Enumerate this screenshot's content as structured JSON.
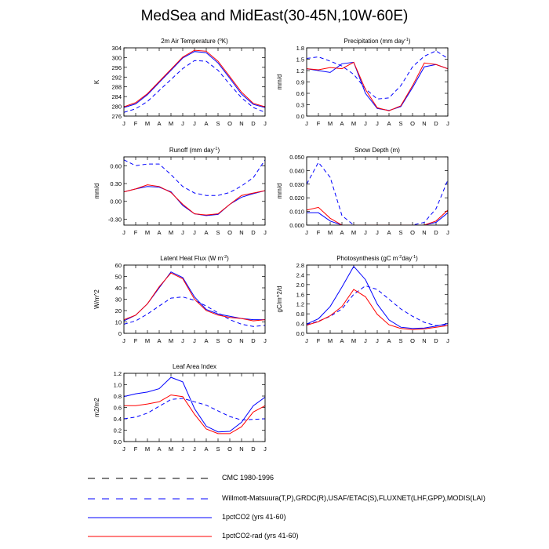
{
  "title": "MedSea and MidEast(30-45N,10W-60E)",
  "months": [
    "J",
    "F",
    "M",
    "A",
    "M",
    "J",
    "J",
    "A",
    "S",
    "O",
    "N",
    "D",
    "J"
  ],
  "legend": [
    {
      "label": "CMC 1980-1996",
      "color": "#000000",
      "dash": true
    },
    {
      "label": "Willmott-Matsuura(T,P),GRDC(R),USAF/ETAC(S),FLUXNET(LHF,GPP),MODIS(LAI)",
      "color": "#0000ff",
      "dash": true
    },
    {
      "label": "1pctCO2 (yrs 41-60)",
      "color": "#0000ff",
      "dash": false
    },
    {
      "label": "1pctCO2-rad (yrs 41-60)",
      "color": "#ff0000",
      "dash": false
    }
  ],
  "chart_data": [
    {
      "type": "line",
      "title_main": "2m Air Temperature (",
      "title_sup": "o",
      "title_end": "K)",
      "ylabel": "K",
      "ylim": [
        276,
        304
      ],
      "yticks": [
        276,
        280,
        284,
        288,
        292,
        296,
        300,
        304
      ],
      "ytick_labels": [
        "276",
        "280",
        "284",
        "288",
        "292",
        "296",
        "300",
        "304"
      ],
      "series": [
        {
          "style": "obs",
          "values": [
            277.5,
            279.0,
            282.0,
            286.5,
            291.0,
            295.5,
            298.8,
            298.5,
            294.8,
            289.0,
            283.5,
            279.5,
            277.5
          ]
        },
        {
          "style": "exp",
          "values": [
            279.5,
            281.0,
            284.8,
            289.8,
            294.8,
            299.8,
            302.5,
            302.0,
            297.8,
            291.5,
            285.0,
            280.8,
            279.5
          ]
        },
        {
          "style": "rad",
          "values": [
            279.8,
            281.5,
            285.2,
            290.2,
            295.2,
            300.2,
            303.0,
            302.6,
            298.5,
            292.2,
            285.8,
            281.2,
            279.8
          ]
        }
      ]
    },
    {
      "type": "line",
      "title_main": "Precipitation (mm day",
      "title_sup": "-1",
      "title_end": ")",
      "ylabel": "mm/d",
      "ylim": [
        0.0,
        1.8
      ],
      "yticks": [
        0.0,
        0.3,
        0.6,
        0.9,
        1.2,
        1.5,
        1.8
      ],
      "ytick_labels": [
        "0.0",
        "0.3",
        "0.6",
        "0.9",
        "1.2",
        "1.5",
        "1.8"
      ],
      "series": [
        {
          "style": "obs",
          "values": [
            1.52,
            1.56,
            1.45,
            1.32,
            1.1,
            0.72,
            0.45,
            0.48,
            0.8,
            1.3,
            1.58,
            1.72,
            1.52
          ]
        },
        {
          "style": "exp",
          "values": [
            1.25,
            1.2,
            1.15,
            1.38,
            1.42,
            0.6,
            0.2,
            0.15,
            0.25,
            0.75,
            1.3,
            1.36,
            1.25
          ]
        },
        {
          "style": "rad",
          "values": [
            1.25,
            1.22,
            1.28,
            1.25,
            1.42,
            0.7,
            0.22,
            0.14,
            0.27,
            0.8,
            1.4,
            1.36,
            1.25
          ]
        }
      ]
    },
    {
      "type": "line",
      "title_main": "Runoff (mm day",
      "title_sup": "-1",
      "title_end": ")",
      "ylabel": "mm/d",
      "ylim": [
        -0.4,
        0.75
      ],
      "yticks": [
        -0.3,
        0.0,
        0.3,
        0.6
      ],
      "ytick_labels": [
        "-0.30",
        "0.00",
        "0.30",
        "0.60"
      ],
      "series": [
        {
          "style": "obs",
          "values": [
            0.7,
            0.6,
            0.63,
            0.63,
            0.45,
            0.25,
            0.14,
            0.1,
            0.1,
            0.15,
            0.26,
            0.4,
            0.7
          ]
        },
        {
          "style": "exp",
          "values": [
            0.16,
            0.21,
            0.25,
            0.24,
            0.16,
            -0.07,
            -0.21,
            -0.24,
            -0.22,
            -0.05,
            0.07,
            0.13,
            0.18
          ]
        },
        {
          "style": "rad",
          "values": [
            0.16,
            0.21,
            0.28,
            0.25,
            0.15,
            -0.05,
            -0.21,
            -0.23,
            -0.21,
            -0.05,
            0.1,
            0.14,
            0.18
          ]
        }
      ]
    },
    {
      "type": "line",
      "title_main": "Snow Depth (m)",
      "title_sup": "",
      "title_end": "",
      "ylabel": "mm/d",
      "ylim": [
        0.0,
        0.05
      ],
      "yticks": [
        0.0,
        0.01,
        0.02,
        0.03,
        0.04,
        0.05
      ],
      "ytick_labels": [
        "0.000",
        "0.010",
        "0.020",
        "0.030",
        "0.040",
        "0.050"
      ],
      "series": [
        {
          "style": "obs",
          "values": [
            0.03,
            0.046,
            0.035,
            0.007,
            0.0,
            0.0,
            0.0,
            0.0,
            0.0,
            0.0,
            0.002,
            0.012,
            0.033
          ]
        },
        {
          "style": "exp",
          "values": [
            0.009,
            0.009,
            0.003,
            0.0,
            0.0,
            0.0,
            0.0,
            0.0,
            0.0,
            0.0,
            0.0,
            0.002,
            0.009
          ]
        },
        {
          "style": "rad",
          "values": [
            0.011,
            0.013,
            0.005,
            0.0,
            0.0,
            0.0,
            0.0,
            0.0,
            0.0,
            0.0,
            0.0,
            0.003,
            0.011
          ]
        }
      ]
    },
    {
      "type": "line",
      "title_main": "Latent Heat Flux (W m",
      "title_sup": "-2",
      "title_end": ")",
      "ylabel": "W/m^2",
      "ylim": [
        0,
        60
      ],
      "yticks": [
        0,
        10,
        20,
        30,
        40,
        50,
        60
      ],
      "ytick_labels": [
        "0",
        "10",
        "20",
        "30",
        "40",
        "50",
        "60"
      ],
      "series": [
        {
          "style": "obs",
          "values": [
            8,
            11,
            17,
            24,
            31,
            32,
            29,
            24,
            18,
            12,
            8,
            6,
            7
          ]
        },
        {
          "style": "exp",
          "values": [
            11,
            16,
            26,
            40,
            54,
            49,
            32,
            21,
            17,
            15,
            13,
            12,
            12
          ]
        },
        {
          "style": "rad",
          "values": [
            12,
            16,
            26,
            41,
            53,
            48,
            30,
            20,
            16,
            14,
            13,
            11,
            12
          ]
        }
      ]
    },
    {
      "type": "line",
      "title_main": "Photosynthesis (gC m",
      "title_sup": "-2",
      "title_end": "day",
      "title_sup2": "-1",
      "title_end2": ")",
      "ylabel": "gC/m^2/d",
      "ylim": [
        0.0,
        2.8
      ],
      "yticks": [
        0.0,
        0.4,
        0.8,
        1.2,
        1.6,
        2.0,
        2.4,
        2.8
      ],
      "ytick_labels": [
        "0.0",
        "0.4",
        "0.8",
        "1.2",
        "1.6",
        "2.0",
        "2.4",
        "2.8"
      ],
      "series": [
        {
          "style": "obs",
          "values": [
            0.35,
            0.5,
            0.7,
            1.0,
            1.6,
            1.95,
            1.8,
            1.4,
            1.0,
            0.7,
            0.45,
            0.32,
            0.35
          ]
        },
        {
          "style": "exp",
          "values": [
            0.38,
            0.6,
            1.1,
            1.9,
            2.75,
            2.2,
            1.2,
            0.55,
            0.25,
            0.2,
            0.22,
            0.3,
            0.4
          ]
        },
        {
          "style": "rad",
          "values": [
            0.33,
            0.48,
            0.72,
            1.1,
            1.8,
            1.5,
            0.78,
            0.35,
            0.2,
            0.15,
            0.18,
            0.25,
            0.32
          ]
        }
      ]
    },
    {
      "type": "line",
      "title_main": "Leaf Area Index",
      "title_sup": "",
      "title_end": "",
      "ylabel": "m2/m2",
      "ylim": [
        0.0,
        1.2
      ],
      "yticks": [
        0.0,
        0.2,
        0.4,
        0.6,
        0.8,
        1.0,
        1.2
      ],
      "ytick_labels": [
        "0.0",
        "0.2",
        "0.4",
        "0.6",
        "0.8",
        "1.0",
        "1.2"
      ],
      "series": [
        {
          "style": "obs",
          "values": [
            0.4,
            0.43,
            0.5,
            0.62,
            0.74,
            0.76,
            0.7,
            0.64,
            0.54,
            0.44,
            0.38,
            0.39,
            0.4
          ]
        },
        {
          "style": "exp",
          "values": [
            0.79,
            0.84,
            0.87,
            0.93,
            1.13,
            1.05,
            0.58,
            0.27,
            0.17,
            0.18,
            0.34,
            0.63,
            0.78
          ]
        },
        {
          "style": "rad",
          "values": [
            0.63,
            0.63,
            0.66,
            0.7,
            0.82,
            0.79,
            0.48,
            0.22,
            0.14,
            0.14,
            0.26,
            0.52,
            0.63
          ]
        }
      ]
    }
  ]
}
